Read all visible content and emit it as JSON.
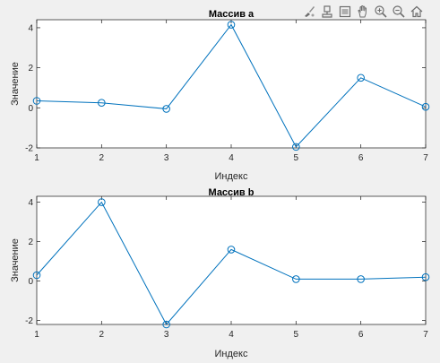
{
  "figure": {
    "background": "#f0f0f0",
    "axes_background": "#ffffff",
    "line_color": "#0072bd",
    "axis_color": "#262626"
  },
  "toolbar": {
    "icons": [
      "brush-icon",
      "data-tips-icon",
      "legend-icon",
      "pan-icon",
      "zoom-in-icon",
      "zoom-out-icon",
      "home-icon"
    ]
  },
  "chart_data": [
    {
      "type": "line",
      "title": "Массив a",
      "xlabel": "Индекс",
      "ylabel": "Значение",
      "x": [
        1,
        2,
        3,
        4,
        5,
        6,
        7
      ],
      "series": [
        {
          "values": [
            0.35,
            0.25,
            -0.05,
            4.15,
            -1.95,
            1.5,
            0.05
          ],
          "marker": "circle"
        }
      ],
      "xlim": [
        1,
        7
      ],
      "ylim": [
        -2,
        4.4
      ],
      "xticks": [
        "1",
        "2",
        "3",
        "4",
        "5",
        "6",
        "7"
      ],
      "yticks": [
        "-2",
        "0",
        "2",
        "4"
      ],
      "grid": false,
      "legend": "none"
    },
    {
      "type": "line",
      "title": "Массив b",
      "xlabel": "Индекс",
      "ylabel": "Значение",
      "x": [
        1,
        2,
        3,
        4,
        5,
        6,
        7
      ],
      "series": [
        {
          "values": [
            0.3,
            4.0,
            -2.2,
            1.6,
            0.1,
            0.1,
            0.2
          ],
          "marker": "circle"
        }
      ],
      "xlim": [
        1,
        7
      ],
      "ylim": [
        -2.2,
        4.3
      ],
      "xticks": [
        "1",
        "2",
        "3",
        "4",
        "5",
        "6",
        "7"
      ],
      "yticks": [
        "-2",
        "0",
        "2",
        "4"
      ],
      "grid": false,
      "legend": "none"
    }
  ]
}
